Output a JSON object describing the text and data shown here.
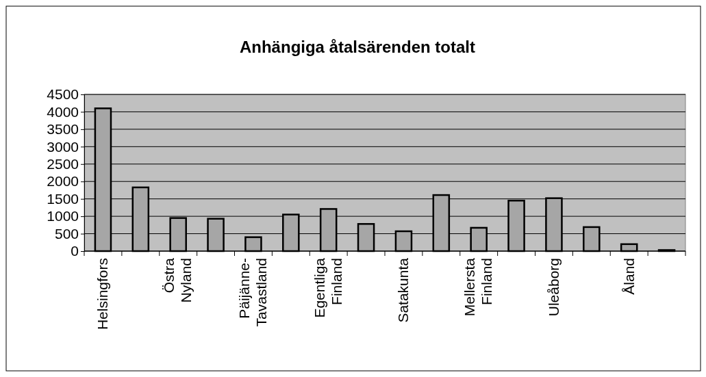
{
  "chart_data": {
    "type": "bar",
    "title": "Anhängiga åtalsärenden totalt",
    "categories": [
      "Helsingfors",
      null,
      "Östra Nyland",
      null,
      "Päijänne-Tavastland",
      null,
      "Egentliga Finland",
      null,
      "Satakunta",
      null,
      "Mellersta Finland",
      null,
      "Uleåborg",
      null,
      "Åland",
      null
    ],
    "values": [
      4100,
      1830,
      950,
      930,
      400,
      1050,
      1210,
      780,
      570,
      1610,
      670,
      1450,
      1520,
      690,
      200,
      30
    ],
    "color": "#a6a6a6",
    "ylim": [
      0,
      4500
    ],
    "yticks": [
      0,
      500,
      1000,
      1500,
      2000,
      2500,
      3000,
      3500,
      4000,
      4500
    ],
    "grid": "y"
  }
}
